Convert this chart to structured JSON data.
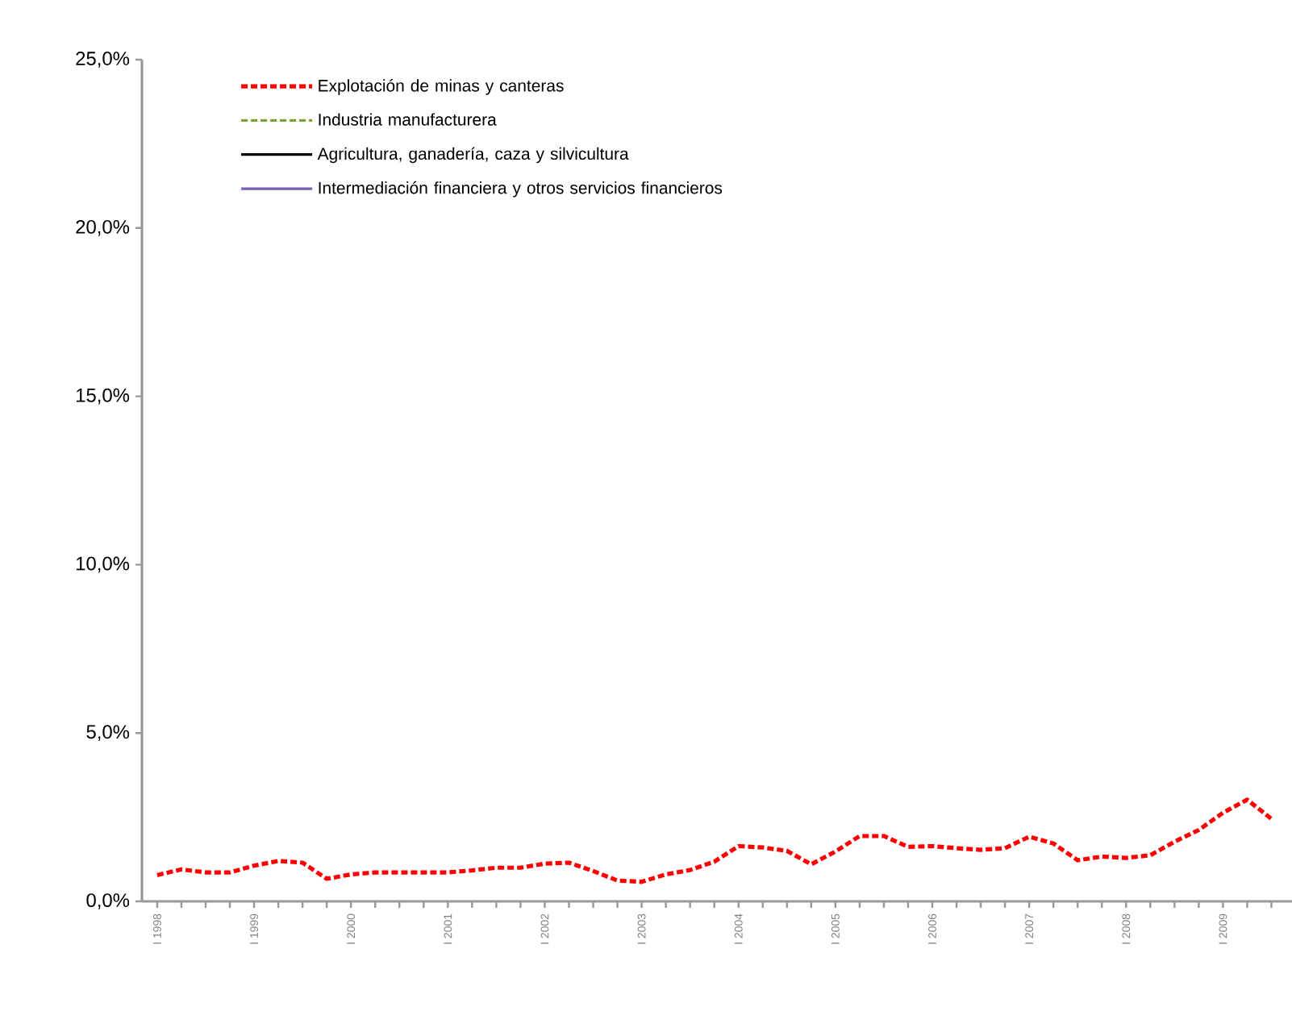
{
  "chart_data": {
    "type": "line",
    "categories": [
      "I 1998",
      null,
      null,
      null,
      "I 1999",
      null,
      null,
      null,
      "I 2000",
      null,
      null,
      null,
      "I 2001",
      null,
      null,
      null,
      "I 2002",
      null,
      null,
      null,
      "I 2003",
      null,
      null,
      null,
      "I 2004",
      null,
      null,
      null,
      "I 2005",
      null,
      null,
      null,
      "I 2006",
      null,
      null,
      null,
      "I 2007",
      null,
      null,
      null,
      "I 2008",
      null,
      null,
      null,
      "I 2009",
      null,
      null
    ],
    "series": [
      {
        "name": "Explotación de minas y canteras",
        "color": "#ff0000",
        "line_style": "dashed",
        "values": [
          0.78,
          0.95,
          0.86,
          0.86,
          1.06,
          1.2,
          1.15,
          0.67,
          0.8,
          0.86,
          0.86,
          0.86,
          0.86,
          0.92,
          1.0,
          1.0,
          1.12,
          1.15,
          0.9,
          0.62,
          0.58,
          0.8,
          0.93,
          1.18,
          1.64,
          1.6,
          1.5,
          1.1,
          1.48,
          1.94,
          1.94,
          1.62,
          1.64,
          1.58,
          1.53,
          1.58,
          1.92,
          1.72,
          1.22,
          1.33,
          1.29,
          1.37,
          1.77,
          2.12,
          2.63,
          3.02,
          2.45
        ]
      },
      {
        "name": "Industria manufacturera",
        "color": "#77a52f",
        "line_style": "dashed",
        "values": [
          null,
          null,
          null,
          null,
          null,
          null,
          null,
          null,
          null,
          null,
          null,
          null,
          null,
          null,
          null,
          null,
          null,
          null,
          null,
          null,
          null,
          null,
          null,
          null,
          null,
          null,
          null,
          null,
          null,
          null,
          null,
          null,
          null,
          null,
          null,
          null,
          null,
          null,
          null,
          null,
          null,
          null,
          null,
          null,
          null,
          null,
          null
        ]
      },
      {
        "name": "Agricultura, ganadería, caza y silvicultura",
        "color": "#000000",
        "line_style": "solid",
        "values": [
          null,
          null,
          null,
          null,
          null,
          null,
          null,
          null,
          null,
          null,
          null,
          null,
          null,
          null,
          null,
          null,
          null,
          null,
          null,
          null,
          null,
          null,
          null,
          null,
          null,
          null,
          null,
          null,
          null,
          null,
          null,
          null,
          null,
          null,
          null,
          null,
          null,
          null,
          null,
          null,
          null,
          null,
          null,
          null,
          null,
          null,
          null
        ]
      },
      {
        "name": "Intermediación financiera y otros servicios financieros",
        "color": "#7a5cb0",
        "line_style": "solid",
        "values": [
          null,
          null,
          null,
          null,
          null,
          null,
          null,
          null,
          null,
          null,
          null,
          null,
          null,
          null,
          null,
          null,
          null,
          null,
          null,
          null,
          null,
          null,
          null,
          null,
          null,
          null,
          null,
          null,
          null,
          null,
          null,
          null,
          null,
          null,
          null,
          null,
          null,
          null,
          null,
          null,
          null,
          null,
          null,
          null,
          null,
          null,
          null
        ]
      }
    ],
    "ylim": [
      0,
      25
    ],
    "yticks": [
      {
        "value": 0,
        "label": "0,0%"
      },
      {
        "value": 5,
        "label": "5,0%"
      },
      {
        "value": 10,
        "label": "10,0%"
      },
      {
        "value": 15,
        "label": "15,0%"
      },
      {
        "value": 20,
        "label": "20,0%"
      },
      {
        "value": 25,
        "label": "25,0%"
      }
    ],
    "legend": "top left"
  }
}
